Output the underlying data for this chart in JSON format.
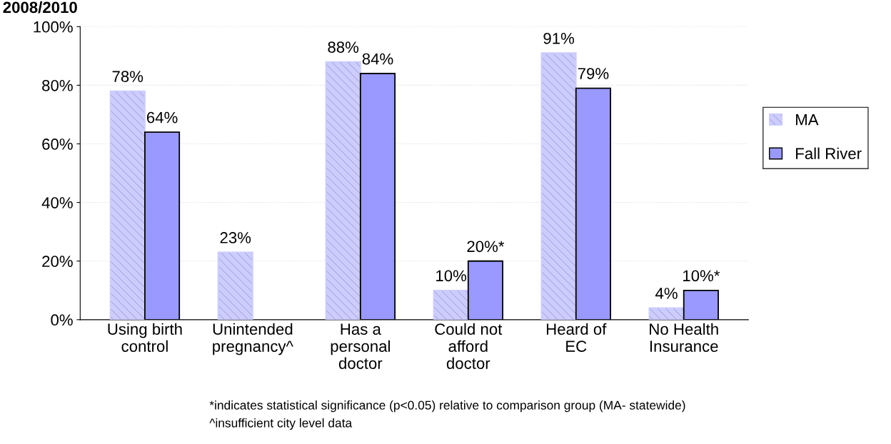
{
  "chart_data": {
    "type": "bar",
    "title": "2008/2010",
    "categories": [
      "Using birth\ncontrol",
      "Unintended\npregnancy^",
      "Has a\npersonal\ndoctor",
      "Could not\nafford\ndoctor",
      "Heard of\nEC",
      "No Health\nInsurance"
    ],
    "series": [
      {
        "name": "MA",
        "color": "#ccccff",
        "values": [
          78,
          23,
          88,
          10,
          91,
          4
        ],
        "value_labels": [
          "78%",
          "23%",
          "88%",
          "10%",
          "91%",
          "4%"
        ]
      },
      {
        "name": "Fall River",
        "color": "#9999ff",
        "values": [
          64,
          null,
          84,
          20,
          79,
          10
        ],
        "value_labels": [
          "64%",
          null,
          "84%",
          "20%*",
          "79%",
          "10%*"
        ]
      }
    ],
    "ylim": [
      0,
      100
    ],
    "yticks": [
      {
        "value": 0,
        "label": "0%"
      },
      {
        "value": 20,
        "label": "20%"
      },
      {
        "value": 40,
        "label": "40%"
      },
      {
        "value": 60,
        "label": "60%"
      },
      {
        "value": 80,
        "label": "80%"
      },
      {
        "value": 100,
        "label": "100%"
      }
    ],
    "grid": "y",
    "legend": "right",
    "annotations": [
      "*indicates statistical significance (p<0.05) relative to comparison group (MA- statewide)",
      "^insufficient city level data"
    ]
  }
}
